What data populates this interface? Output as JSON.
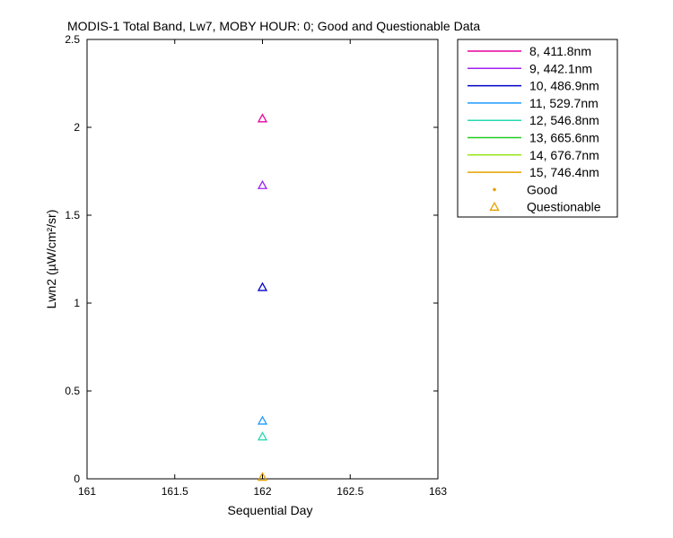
{
  "chart_data": {
    "type": "scatter",
    "title": "MODIS-1 Total Band, Lw7, MOBY HOUR: 0;  Good and Questionable Data",
    "xlabel": "Sequential Day",
    "ylabel": "Lwn2 (µW/cm²/sr)",
    "xlim": [
      161,
      163
    ],
    "ylim": [
      0,
      2.5
    ],
    "xticks": [
      161,
      161.5,
      162,
      162.5,
      163
    ],
    "xtick_labels": [
      "161",
      "161.5",
      "162",
      "162.5",
      "163"
    ],
    "yticks": [
      0,
      0.5,
      1,
      1.5,
      2,
      2.5
    ],
    "ytick_labels": [
      "0",
      "0.5",
      "1",
      "1.5",
      "2",
      "2.5"
    ],
    "grid": false,
    "legend_position": "outside-top-right",
    "series": [
      {
        "name": "8, 411.8nm",
        "color": "#e6009e",
        "points": [
          {
            "x": 162,
            "y": 2.05,
            "quality": "questionable"
          }
        ]
      },
      {
        "name": "9, 442.1nm",
        "color": "#a020f0",
        "points": [
          {
            "x": 162,
            "y": 1.67,
            "quality": "questionable"
          }
        ]
      },
      {
        "name": "10, 486.9nm",
        "color": "#0000c8",
        "points": [
          {
            "x": 162,
            "y": 1.09,
            "quality": "questionable"
          }
        ]
      },
      {
        "name": "11, 529.7nm",
        "color": "#1e9bff",
        "points": [
          {
            "x": 162,
            "y": 0.33,
            "quality": "questionable"
          }
        ]
      },
      {
        "name": "12, 546.8nm",
        "color": "#28d8b0",
        "points": [
          {
            "x": 162,
            "y": 0.24,
            "quality": "questionable"
          }
        ]
      },
      {
        "name": "13, 665.6nm",
        "color": "#22cc22",
        "points": []
      },
      {
        "name": "14, 676.7nm",
        "color": "#99e61a",
        "points": []
      },
      {
        "name": "15, 746.4nm",
        "color": "#e6a000",
        "points": [
          {
            "x": 162,
            "y": 0.01,
            "quality": "questionable"
          }
        ]
      }
    ],
    "marker_legend": [
      {
        "name": "Good",
        "marker": "dot",
        "color": "#e6a000"
      },
      {
        "name": "Questionable",
        "marker": "triangle",
        "color": "#e6a000"
      }
    ]
  }
}
